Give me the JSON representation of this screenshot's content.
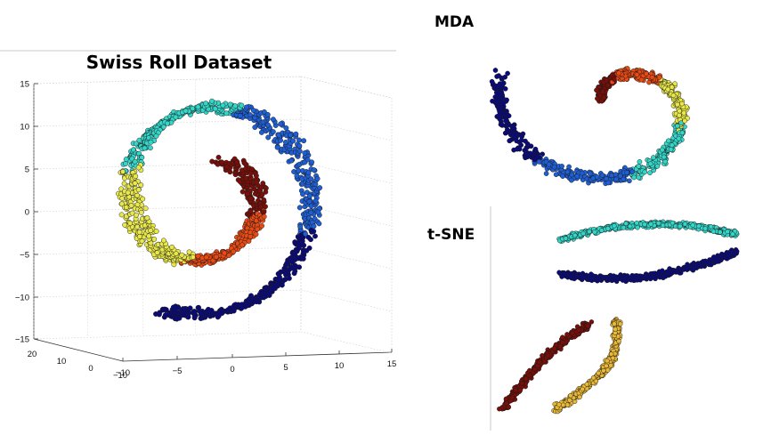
{
  "chart_data": [
    {
      "type": "scatter",
      "title": "Swiss Roll Dataset",
      "dimensions": 3,
      "z_ticks": [
        "15",
        "10",
        "5",
        "0",
        "−5",
        "−10",
        "−15"
      ],
      "y_ticks": [
        "20",
        "10",
        "0",
        "−10"
      ],
      "x_ticks": [
        "−10",
        "−5",
        "0",
        "5",
        "10",
        "15"
      ],
      "zlim": [
        -15,
        15
      ],
      "xlim": [
        -10,
        15
      ],
      "ylim": [
        -10,
        20
      ],
      "grid": true,
      "colormap": "jet",
      "color_order": [
        "#0a0a7a",
        "#1f5fd6",
        "#33d6c8",
        "#e8e84a",
        "#ea4a14",
        "#7a0f0a"
      ],
      "n_points_approx": 1600
    },
    {
      "type": "scatter",
      "title": "MDA",
      "axes_shown": false,
      "colormap": "jet"
    },
    {
      "type": "scatter",
      "title": "t-SNE",
      "axes_shown": false,
      "colormap": "jet"
    }
  ]
}
